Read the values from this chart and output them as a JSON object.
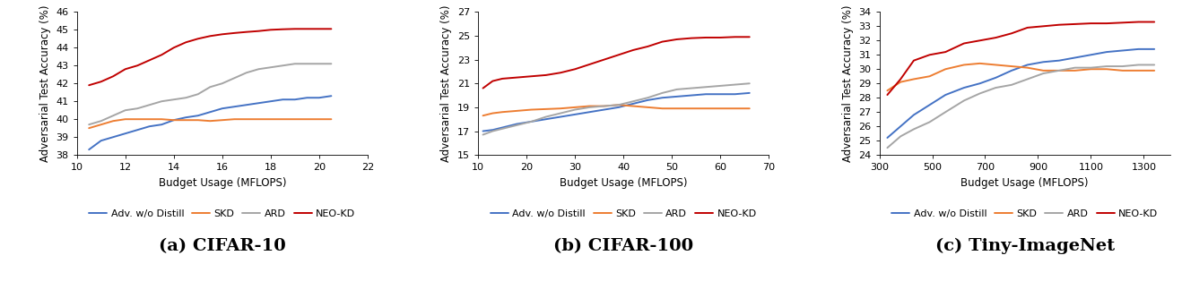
{
  "cifar10": {
    "title": "(a) CIFAR-10",
    "xlabel": "Budget Usage (MFLOPS)",
    "ylabel": "Adversarial Test Accuracy (%)",
    "xlim": [
      10,
      22
    ],
    "ylim": [
      38,
      46
    ],
    "xticks": [
      10,
      12,
      14,
      16,
      18,
      20,
      22
    ],
    "yticks": [
      38,
      39,
      40,
      41,
      42,
      43,
      44,
      45,
      46
    ],
    "series": {
      "Adv. w/o Distill": {
        "color": "#4472C4",
        "x": [
          10.5,
          11.0,
          11.5,
          12.0,
          12.5,
          13.0,
          13.5,
          14.0,
          14.5,
          15.0,
          15.5,
          16.0,
          16.5,
          17.0,
          17.5,
          18.0,
          18.5,
          19.0,
          19.5,
          20.0,
          20.5
        ],
        "y": [
          38.3,
          38.8,
          39.0,
          39.2,
          39.4,
          39.6,
          39.7,
          39.95,
          40.1,
          40.2,
          40.4,
          40.6,
          40.7,
          40.8,
          40.9,
          41.0,
          41.1,
          41.1,
          41.2,
          41.2,
          41.3
        ]
      },
      "SKD": {
        "color": "#ED7D31",
        "x": [
          10.5,
          11.0,
          11.5,
          12.0,
          12.5,
          13.0,
          13.5,
          14.0,
          14.5,
          15.0,
          15.5,
          16.0,
          16.5,
          17.0,
          17.5,
          18.0,
          18.5,
          19.0,
          19.5,
          20.0,
          20.5
        ],
        "y": [
          39.5,
          39.7,
          39.9,
          40.0,
          40.0,
          40.0,
          40.0,
          39.95,
          39.95,
          39.95,
          39.9,
          39.95,
          40.0,
          40.0,
          40.0,
          40.0,
          40.0,
          40.0,
          40.0,
          40.0,
          40.0
        ]
      },
      "ARD": {
        "color": "#A5A5A5",
        "x": [
          10.5,
          11.0,
          11.5,
          12.0,
          12.5,
          13.0,
          13.5,
          14.0,
          14.5,
          15.0,
          15.5,
          16.0,
          16.5,
          17.0,
          17.5,
          18.0,
          18.5,
          19.0,
          19.5,
          20.0,
          20.5
        ],
        "y": [
          39.7,
          39.9,
          40.2,
          40.5,
          40.6,
          40.8,
          41.0,
          41.1,
          41.2,
          41.4,
          41.8,
          42.0,
          42.3,
          42.6,
          42.8,
          42.9,
          43.0,
          43.1,
          43.1,
          43.1,
          43.1
        ]
      },
      "NEO-KD": {
        "color": "#C00000",
        "x": [
          10.5,
          11.0,
          11.5,
          12.0,
          12.5,
          13.0,
          13.5,
          14.0,
          14.5,
          15.0,
          15.5,
          16.0,
          16.5,
          17.0,
          17.5,
          18.0,
          18.5,
          19.0,
          19.5,
          20.0,
          20.5
        ],
        "y": [
          41.9,
          42.1,
          42.4,
          42.8,
          43.0,
          43.3,
          43.6,
          44.0,
          44.3,
          44.5,
          44.65,
          44.75,
          44.82,
          44.88,
          44.93,
          45.0,
          45.03,
          45.05,
          45.05,
          45.05,
          45.05
        ]
      }
    }
  },
  "cifar100": {
    "title": "(b) CIFAR-100",
    "xlabel": "Budget Usage (MFLOPS)",
    "ylabel": "Adversarial Test Accuracy (%)",
    "xlim": [
      10,
      70
    ],
    "ylim": [
      15,
      27
    ],
    "xticks": [
      10,
      20,
      30,
      40,
      50,
      60,
      70
    ],
    "yticks": [
      15,
      17,
      19,
      21,
      23,
      25,
      27
    ],
    "series": {
      "Adv. w/o Distill": {
        "color": "#4472C4",
        "x": [
          11,
          13,
          15,
          18,
          21,
          24,
          27,
          30,
          33,
          36,
          39,
          42,
          45,
          48,
          51,
          54,
          57,
          60,
          63,
          66
        ],
        "y": [
          17.0,
          17.1,
          17.3,
          17.6,
          17.8,
          18.0,
          18.2,
          18.4,
          18.6,
          18.8,
          19.0,
          19.3,
          19.6,
          19.8,
          19.9,
          20.0,
          20.1,
          20.1,
          20.1,
          20.2
        ]
      },
      "SKD": {
        "color": "#ED7D31",
        "x": [
          11,
          13,
          15,
          18,
          21,
          24,
          27,
          30,
          33,
          36,
          39,
          42,
          45,
          48,
          51,
          54,
          57,
          60,
          63,
          66
        ],
        "y": [
          18.3,
          18.5,
          18.6,
          18.7,
          18.8,
          18.85,
          18.9,
          19.0,
          19.1,
          19.1,
          19.2,
          19.1,
          19.0,
          18.9,
          18.9,
          18.9,
          18.9,
          18.9,
          18.9,
          18.9
        ]
      },
      "ARD": {
        "color": "#A5A5A5",
        "x": [
          11,
          13,
          15,
          18,
          21,
          24,
          27,
          30,
          33,
          36,
          39,
          42,
          45,
          48,
          51,
          54,
          57,
          60,
          63,
          66
        ],
        "y": [
          16.7,
          17.0,
          17.2,
          17.5,
          17.8,
          18.2,
          18.5,
          18.8,
          19.0,
          19.1,
          19.2,
          19.5,
          19.8,
          20.2,
          20.5,
          20.6,
          20.7,
          20.8,
          20.9,
          21.0
        ]
      },
      "NEO-KD": {
        "color": "#C00000",
        "x": [
          11,
          13,
          15,
          18,
          21,
          24,
          27,
          30,
          33,
          36,
          39,
          42,
          45,
          48,
          51,
          54,
          57,
          60,
          63,
          66
        ],
        "y": [
          20.6,
          21.2,
          21.4,
          21.5,
          21.6,
          21.7,
          21.9,
          22.2,
          22.6,
          23.0,
          23.4,
          23.8,
          24.1,
          24.5,
          24.7,
          24.8,
          24.85,
          24.85,
          24.9,
          24.9
        ]
      }
    }
  },
  "tiny_imagenet": {
    "title": "(c) Tiny-ImageNet",
    "xlabel": "Budget Usage (MFLOPS)",
    "ylabel": "Adversarial Test Accuracy (%)",
    "xlim": [
      300,
      1400
    ],
    "ylim": [
      24,
      34
    ],
    "xticks": [
      300,
      500,
      700,
      900,
      1100,
      1300
    ],
    "yticks": [
      24,
      25,
      26,
      27,
      28,
      29,
      30,
      31,
      32,
      33,
      34
    ],
    "series": {
      "Adv. w/o Distill": {
        "color": "#4472C4",
        "x": [
          330,
          380,
          430,
          490,
          550,
          620,
          680,
          740,
          800,
          860,
          920,
          980,
          1040,
          1100,
          1160,
          1220,
          1280,
          1340
        ],
        "y": [
          25.2,
          26.0,
          26.8,
          27.5,
          28.2,
          28.7,
          29.0,
          29.4,
          29.9,
          30.3,
          30.5,
          30.6,
          30.8,
          31.0,
          31.2,
          31.3,
          31.4,
          31.4
        ]
      },
      "SKD": {
        "color": "#ED7D31",
        "x": [
          330,
          380,
          430,
          490,
          550,
          620,
          680,
          740,
          800,
          860,
          920,
          980,
          1040,
          1100,
          1160,
          1220,
          1280,
          1340
        ],
        "y": [
          28.5,
          29.1,
          29.3,
          29.5,
          30.0,
          30.3,
          30.4,
          30.3,
          30.2,
          30.1,
          29.9,
          29.9,
          29.9,
          30.0,
          30.0,
          29.9,
          29.9,
          29.9
        ]
      },
      "ARD": {
        "color": "#A5A5A5",
        "x": [
          330,
          380,
          430,
          490,
          550,
          620,
          680,
          740,
          800,
          860,
          920,
          980,
          1040,
          1100,
          1160,
          1220,
          1280,
          1340
        ],
        "y": [
          24.5,
          25.3,
          25.8,
          26.3,
          27.0,
          27.8,
          28.3,
          28.7,
          28.9,
          29.3,
          29.7,
          29.9,
          30.1,
          30.1,
          30.2,
          30.2,
          30.3,
          30.3
        ]
      },
      "NEO-KD": {
        "color": "#C00000",
        "x": [
          330,
          380,
          430,
          490,
          550,
          620,
          680,
          740,
          800,
          860,
          920,
          980,
          1040,
          1100,
          1160,
          1220,
          1280,
          1340
        ],
        "y": [
          28.2,
          29.3,
          30.6,
          31.0,
          31.2,
          31.8,
          32.0,
          32.2,
          32.5,
          32.9,
          33.0,
          33.1,
          33.15,
          33.2,
          33.2,
          33.25,
          33.3,
          33.3
        ]
      }
    }
  },
  "legend_order": [
    "Adv. w/o Distill",
    "SKD",
    "ARD",
    "NEO-KD"
  ],
  "line_width": 1.4,
  "font_size_axis": 8.5,
  "font_size_tick": 8,
  "font_size_legend": 8,
  "font_size_title": 14
}
